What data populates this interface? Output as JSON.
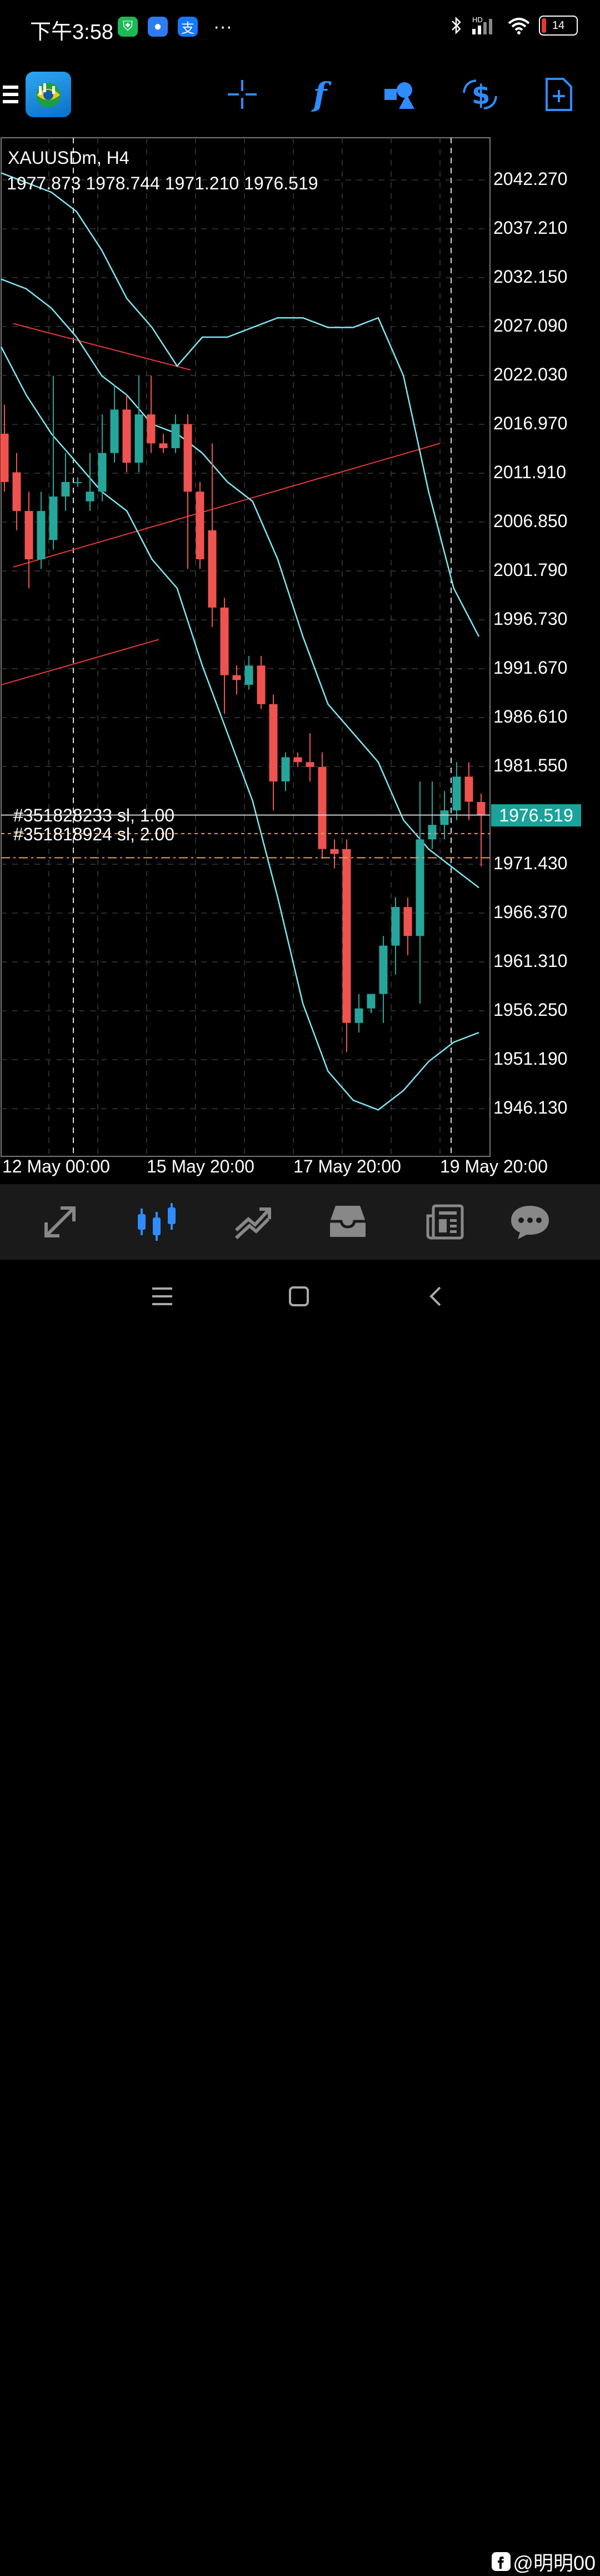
{
  "status_bar": {
    "time": "下午3:58",
    "battery": "14",
    "network": "HD"
  },
  "toolbar": {
    "icons": [
      "menu-icon",
      "metatrader-logo",
      "crosshair-icon",
      "indicators-icon",
      "objects-icon",
      "trade-icon",
      "new-order-icon"
    ]
  },
  "chart": {
    "symbol_timeframe": "XAUUSDm, H4",
    "ohlc": "1977.873 1978.744 1971.210 1976.519",
    "price_labels": [
      "2042.270",
      "2037.210",
      "2032.150",
      "2027.090",
      "2022.030",
      "2016.970",
      "2011.910",
      "2006.850",
      "2001.790",
      "1996.730",
      "1991.670",
      "1986.610",
      "1981.550",
      "1971.430",
      "1966.370",
      "1961.310",
      "1956.250",
      "1951.190",
      "1946.130"
    ],
    "current_price": "1976.519",
    "time_labels": [
      "12 May 00:00",
      "15 May 20:00",
      "17 May 20:00",
      "19 May 20:00"
    ],
    "orders": [
      {
        "label": "#351828233 sl, 1.00"
      },
      {
        "label": "#351818924 sl, 2.00"
      }
    ],
    "colors": {
      "bull": "#26a69a",
      "bear": "#ef5350",
      "bands": "#7fe7f0",
      "trend": "#e53935",
      "grid": "#3a3a3a"
    }
  },
  "chart_data": {
    "type": "candlestick",
    "symbol": "XAUUSDm",
    "timeframe": "H4",
    "candles": [
      {
        "o": 2016.0,
        "h": 2019.0,
        "c": 2011.0,
        "l": 2010.0
      },
      {
        "o": 2012.0,
        "h": 2014.0,
        "c": 2008.0,
        "l": 2006.0
      },
      {
        "o": 2008.0,
        "h": 2010.0,
        "c": 2003.0,
        "l": 2000.0
      },
      {
        "o": 2003.0,
        "h": 2010.0,
        "c": 2008.0,
        "l": 2002.0
      },
      {
        "o": 2005.0,
        "h": 2022.0,
        "c": 2009.5,
        "l": 2004.0
      },
      {
        "o": 2009.5,
        "h": 2014.0,
        "c": 2011.0,
        "l": 2008.0
      },
      {
        "o": 2011.0,
        "h": 2011.5,
        "c": 2011.0,
        "l": 2010.5
      },
      {
        "o": 2009.0,
        "h": 2014.0,
        "c": 2010.0,
        "l": 2008.0
      },
      {
        "o": 2010.0,
        "h": 2018.0,
        "c": 2014.0,
        "l": 2009.0
      },
      {
        "o": 2014.0,
        "h": 2021.0,
        "c": 2018.5,
        "l": 2013.0
      },
      {
        "o": 2018.5,
        "h": 2020.0,
        "c": 2013.0,
        "l": 2012.0
      },
      {
        "o": 2013.0,
        "h": 2022.0,
        "c": 2018.0,
        "l": 2012.0
      },
      {
        "o": 2018.0,
        "h": 2022.0,
        "c": 2015.0,
        "l": 2014.0
      },
      {
        "o": 2015.0,
        "h": 2016.0,
        "c": 2014.5,
        "l": 2014.0
      },
      {
        "o": 2014.5,
        "h": 2018.0,
        "c": 2017.0,
        "l": 2014.0
      },
      {
        "o": 2017.0,
        "h": 2018.0,
        "c": 2010.0,
        "l": 2002.0
      },
      {
        "o": 2010.0,
        "h": 2011.0,
        "c": 2003.0,
        "l": 2002.0
      },
      {
        "o": 2006.0,
        "h": 2015.0,
        "c": 1998.0,
        "l": 1996.0
      },
      {
        "o": 1998.0,
        "h": 1999.0,
        "c": 1991.0,
        "l": 1987.0
      },
      {
        "o": 1991.0,
        "h": 1992.0,
        "c": 1990.5,
        "l": 1989.0
      },
      {
        "o": 1990.0,
        "h": 1993.0,
        "c": 1992.0,
        "l": 1989.5
      },
      {
        "o": 1992.0,
        "h": 1993.0,
        "c": 1988.0,
        "l": 1987.5
      },
      {
        "o": 1988.0,
        "h": 1989.0,
        "c": 1980.0,
        "l": 1977.0
      },
      {
        "o": 1980.0,
        "h": 1983.0,
        "c": 1982.5,
        "l": 1979.0
      },
      {
        "o": 1982.5,
        "h": 1983.0,
        "c": 1982.0,
        "l": 1981.5
      },
      {
        "o": 1982.0,
        "h": 1985.0,
        "c": 1981.5,
        "l": 1980.0
      },
      {
        "o": 1981.5,
        "h": 1983.0,
        "c": 1973.0,
        "l": 1972.0
      },
      {
        "o": 1973.0,
        "h": 1974.0,
        "c": 1972.5,
        "l": 1971.0
      },
      {
        "o": 1973.0,
        "h": 1974.0,
        "c": 1955.0,
        "l": 1952.0
      },
      {
        "o": 1955.0,
        "h": 1958.0,
        "c": 1956.5,
        "l": 1954.0
      },
      {
        "o": 1956.5,
        "h": 1958.0,
        "c": 1958.0,
        "l": 1956.0
      },
      {
        "o": 1958.0,
        "h": 1964.0,
        "c": 1963.0,
        "l": 1955.0
      },
      {
        "o": 1963.0,
        "h": 1968.0,
        "c": 1967.0,
        "l": 1960.0
      },
      {
        "o": 1967.0,
        "h": 1968.0,
        "c": 1964.0,
        "l": 1962.0
      },
      {
        "o": 1964.0,
        "h": 1980.0,
        "c": 1974.0,
        "l": 1957.0
      },
      {
        "o": 1974.0,
        "h": 1980.0,
        "c": 1975.5,
        "l": 1973.0
      },
      {
        "o": 1975.5,
        "h": 1979.0,
        "c": 1977.0,
        "l": 1974.0
      },
      {
        "o": 1977.0,
        "h": 1982.0,
        "c": 1980.5,
        "l": 1976.0
      },
      {
        "o": 1980.5,
        "h": 1982.0,
        "c": 1977.9,
        "l": 1976.0
      },
      {
        "o": 1977.873,
        "h": 1978.744,
        "c": 1976.519,
        "l": 1971.21
      }
    ],
    "bollinger_upper": [
      2043,
      2042,
      2041,
      2039,
      2035,
      2030,
      2027,
      2023,
      2026,
      2026,
      2027,
      2028,
      2028,
      2027,
      2027,
      2028,
      2022,
      2010,
      2000,
      1995
    ],
    "bollinger_mid": [
      2032,
      2031,
      2029,
      2026,
      2022,
      2020,
      2017,
      2016,
      2014,
      2011,
      2009,
      2003,
      1995,
      1988,
      1985,
      1982,
      1976,
      1973,
      1971,
      1969
    ],
    "bollinger_lower": [
      2025,
      2020,
      2016,
      2013,
      2010,
      2008,
      2003,
      2000,
      1992,
      1985,
      1978,
      1968,
      1957,
      1950,
      1947,
      1946,
      1948,
      1951,
      1953,
      1954
    ],
    "ylim": [
      1943.0,
      2047.0
    ]
  },
  "bottom_nav": {
    "items": [
      "quotes-icon",
      "chart-icon",
      "trade-icon",
      "history-icon",
      "news-icon",
      "messages-icon"
    ],
    "active": "chart-icon"
  },
  "watermark": "@明明00"
}
